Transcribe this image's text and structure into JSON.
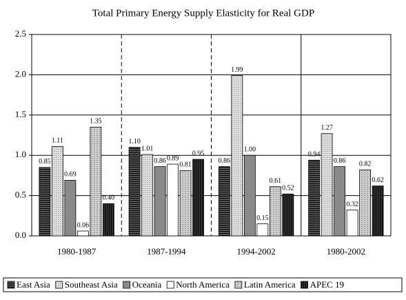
{
  "chart_data": {
    "type": "bar",
    "title": "Total Primary Energy Supply Elasticity for Real GDP",
    "categories": [
      "1980-1987",
      "1987-1994",
      "1994-2002",
      "1980-2002"
    ],
    "series": [
      {
        "name": "East Asia",
        "color": "#555555",
        "values": [
          0.85,
          1.1,
          0.86,
          0.94
        ],
        "value_labels": [
          "0.85",
          "1.10",
          "0.86",
          "0.94"
        ]
      },
      {
        "name": "Southeast Asia",
        "color": "#e0e0e0",
        "values": [
          1.11,
          1.01,
          1.99,
          1.27
        ],
        "value_labels": [
          "1.11",
          "1.01",
          "1.99",
          "1.27"
        ]
      },
      {
        "name": "Oceania",
        "color": "#8a8a8a",
        "values": [
          0.69,
          0.86,
          1.0,
          0.86
        ],
        "value_labels": [
          "0.69",
          "0.86",
          "1.00",
          "0.86"
        ]
      },
      {
        "name": "North America",
        "color": "#ffffff",
        "values": [
          0.06,
          0.89,
          0.15,
          0.32
        ],
        "value_labels": [
          "0.06",
          "0.89",
          "0.15",
          "0.32"
        ]
      },
      {
        "name": "Latin America",
        "color": "#cfcfcf",
        "values": [
          1.35,
          0.81,
          0.61,
          0.82
        ],
        "value_labels": [
          "1.35",
          "0.81",
          "0.61",
          "0.82"
        ]
      },
      {
        "name": "APEC 19",
        "color": "#333333",
        "values": [
          0.4,
          0.95,
          0.52,
          0.62
        ],
        "value_labels": [
          "0.40",
          "0.95",
          "0.52",
          "0.62"
        ]
      }
    ],
    "ylim": [
      0,
      2.5
    ],
    "yticks": [
      {
        "value": 0,
        "label": "0.0"
      },
      {
        "value": 0.5,
        "label": "0.5"
      },
      {
        "value": 1,
        "label": "1.0"
      },
      {
        "value": 1.5,
        "label": "1.5"
      },
      {
        "value": 2,
        "label": "2.0"
      },
      {
        "value": 2.5,
        "label": "2.5"
      }
    ],
    "grid": true
  }
}
